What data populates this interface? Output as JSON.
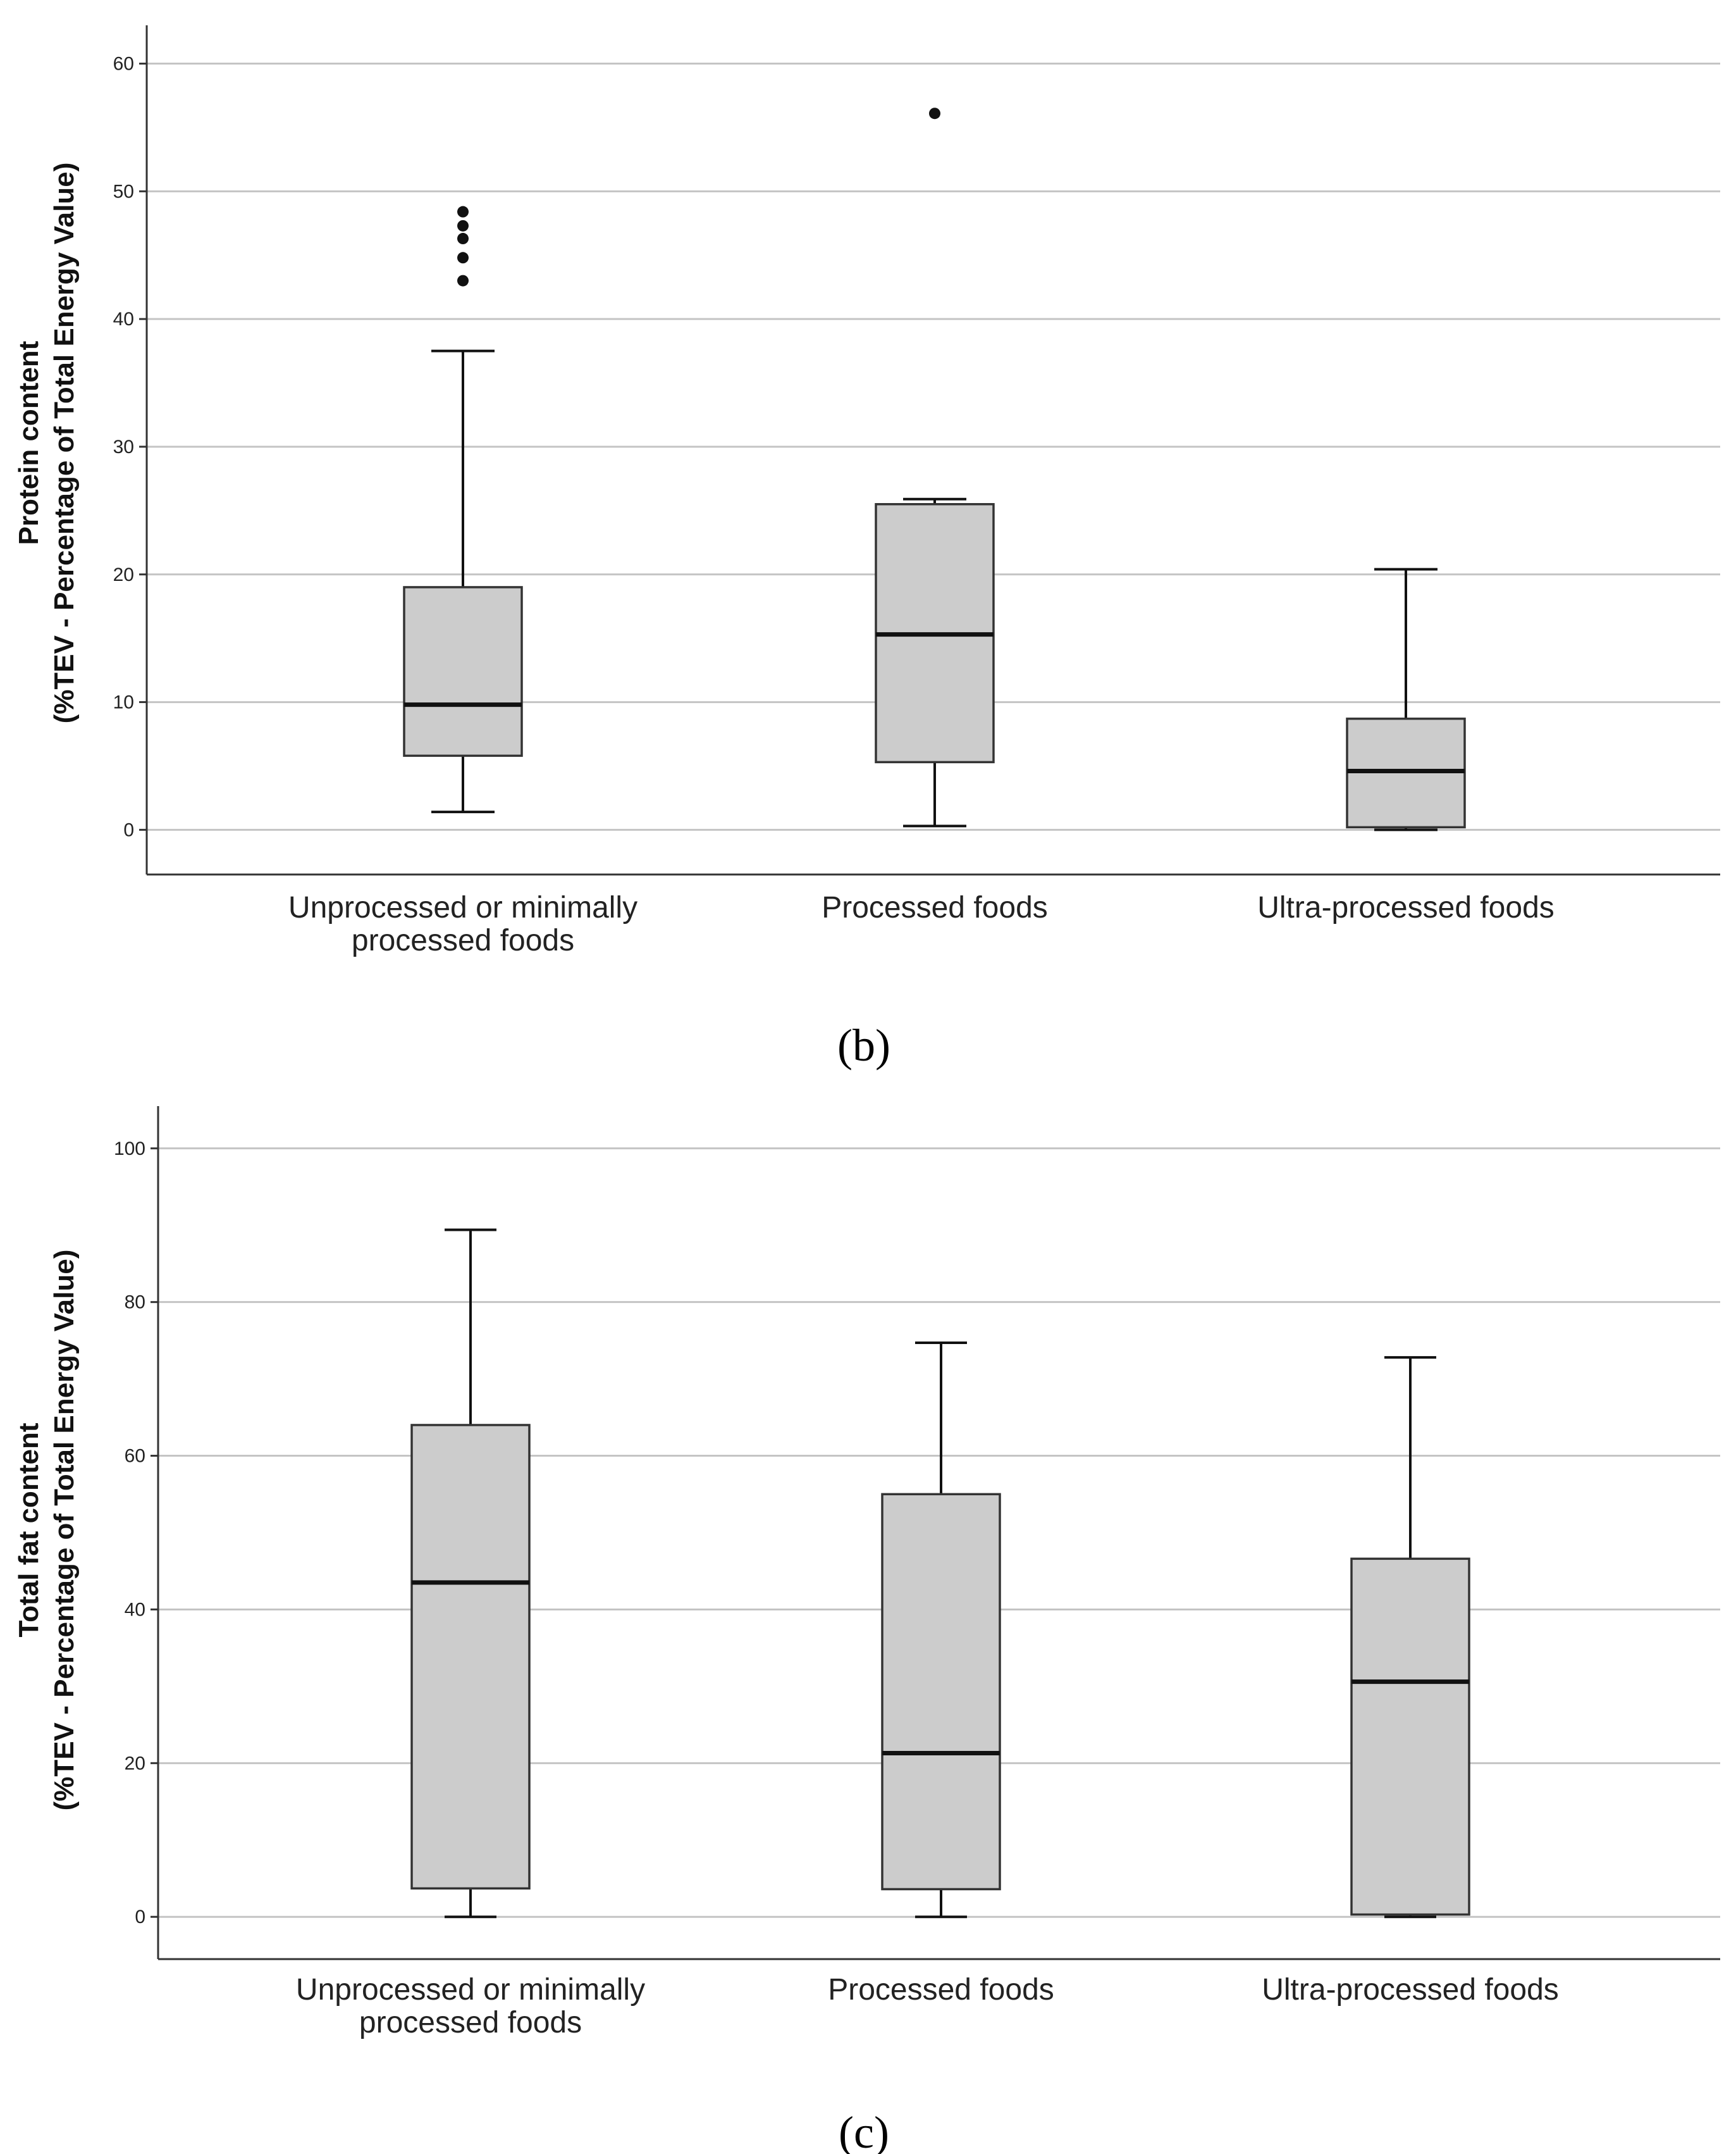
{
  "chart_data": [
    {
      "type": "boxplot",
      "panel_label": "(b)",
      "ylabel_line1": "Protein content",
      "ylabel_line2": "(%TEV - Percentage of Total Energy Value)",
      "ylim": [
        -3.5,
        63
      ],
      "yticks": [
        0,
        10,
        20,
        30,
        40,
        50,
        60
      ],
      "grid": true,
      "categories": [
        {
          "line1": "Unprocessed or minimally",
          "line2": "processed foods"
        },
        {
          "line1": "Processed foods",
          "line2": ""
        },
        {
          "line1": "Ultra-processed foods",
          "line2": ""
        }
      ],
      "boxes": [
        {
          "min": 1.4,
          "q1": 5.8,
          "median": 9.8,
          "q3": 19.0,
          "max": 37.5,
          "outliers": [
            43.0,
            44.8,
            46.3,
            47.3,
            48.4
          ]
        },
        {
          "min": 0.3,
          "q1": 5.3,
          "median": 15.3,
          "q3": 25.5,
          "max": 25.9,
          "outliers": [
            56.1
          ]
        },
        {
          "min": 0.0,
          "q1": 0.2,
          "median": 4.6,
          "q3": 8.7,
          "max": 20.4,
          "outliers": []
        }
      ]
    },
    {
      "type": "boxplot",
      "panel_label": "(c)",
      "ylabel_line1": "Total fat content",
      "ylabel_line2": "(%TEV - Percentage of Total Energy Value)",
      "ylim": [
        -5.5,
        105.5
      ],
      "yticks": [
        0,
        20,
        40,
        60,
        80,
        100
      ],
      "grid": true,
      "categories": [
        {
          "line1": "Unprocessed or minimally",
          "line2": "processed foods"
        },
        {
          "line1": "Processed foods",
          "line2": ""
        },
        {
          "line1": "Ultra-processed foods",
          "line2": ""
        }
      ],
      "boxes": [
        {
          "min": 0.0,
          "q1": 3.7,
          "median": 43.5,
          "q3": 64.0,
          "max": 89.4,
          "outliers": []
        },
        {
          "min": 0.0,
          "q1": 3.6,
          "median": 21.3,
          "q3": 55.0,
          "max": 74.7,
          "outliers": []
        },
        {
          "min": 0.0,
          "q1": 0.3,
          "median": 30.6,
          "q3": 46.6,
          "max": 72.8,
          "outliers": []
        }
      ]
    }
  ]
}
